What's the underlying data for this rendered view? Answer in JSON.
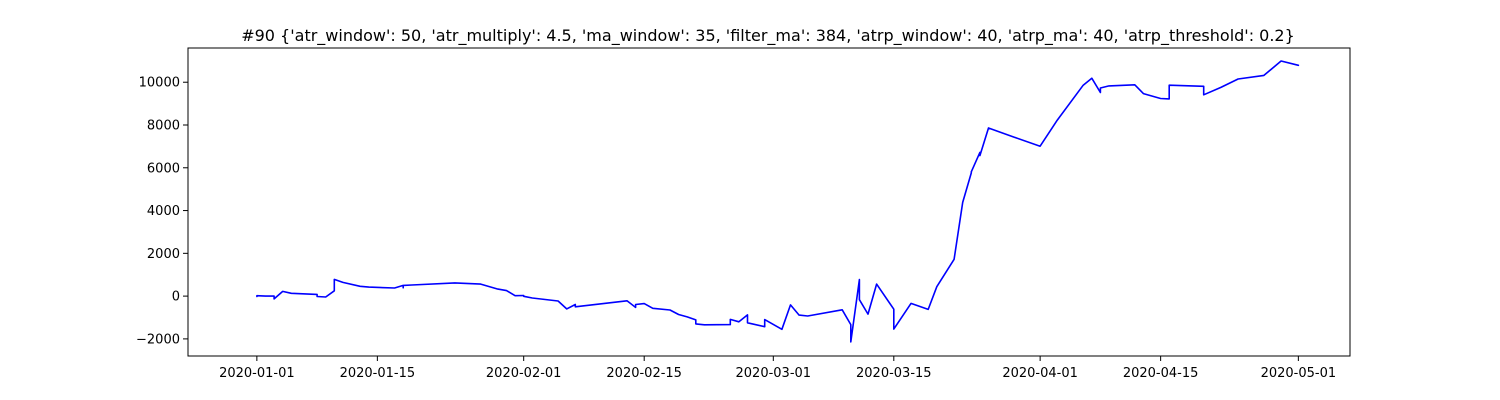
{
  "chart_data": {
    "type": "line",
    "title": "#90 {'atr_window': 50, 'atr_multiply': 4.5, 'ma_window': 35, 'filter_ma': 384, 'atrp_window': 40, 'atrp_ma': 40, 'atrp_threshold': 0.2}",
    "xlabel": "",
    "ylabel": "",
    "xlim": [
      "2019-12-24",
      "2020-05-07"
    ],
    "ylim": [
      -2800,
      11600
    ],
    "grid": false,
    "colors": {
      "line": "#0000ff",
      "axes": "#000000",
      "background": "#ffffff"
    },
    "x_ticks": [
      "2020-01-01",
      "2020-01-15",
      "2020-02-01",
      "2020-02-15",
      "2020-03-01",
      "2020-03-15",
      "2020-04-01",
      "2020-04-15",
      "2020-05-01"
    ],
    "y_ticks": [
      -2000,
      0,
      2000,
      4000,
      6000,
      8000,
      10000
    ],
    "y_tick_labels": [
      "−2000",
      "0",
      "2000",
      "4000",
      "6000",
      "8000",
      "10000"
    ],
    "series": [
      {
        "x": [
          "2020-01-01",
          "2020-01-01",
          "2020-01-02",
          "2020-01-03",
          "2020-01-03",
          "2020-01-04",
          "2020-01-05",
          "2020-01-08",
          "2020-01-08",
          "2020-01-09",
          "2020-01-10",
          "2020-01-10",
          "2020-01-11",
          "2020-01-13",
          "2020-01-14",
          "2020-01-17",
          "2020-01-18",
          "2020-01-18",
          "2020-01-18",
          "2020-01-19",
          "2020-01-24",
          "2020-01-26",
          "2020-01-27",
          "2020-01-29",
          "2020-01-30",
          "2020-01-31",
          "2020-02-01",
          "2020-02-01",
          "2020-02-02",
          "2020-02-05",
          "2020-02-06",
          "2020-02-07",
          "2020-02-07",
          "2020-02-13",
          "2020-02-14",
          "2020-02-14",
          "2020-02-15",
          "2020-02-16",
          "2020-02-18",
          "2020-02-19",
          "2020-02-20",
          "2020-02-21",
          "2020-02-21",
          "2020-02-22",
          "2020-02-25",
          "2020-02-25",
          "2020-02-26",
          "2020-02-27",
          "2020-02-27",
          "2020-02-29",
          "2020-02-29",
          "2020-03-02",
          "2020-03-03",
          "2020-03-04",
          "2020-03-05",
          "2020-03-09",
          "2020-03-10",
          "2020-03-10",
          "2020-03-11",
          "2020-03-11",
          "2020-03-12",
          "2020-03-13",
          "2020-03-15",
          "2020-03-15",
          "2020-03-15",
          "2020-03-17",
          "2020-03-19",
          "2020-03-20",
          "2020-03-22",
          "2020-03-23",
          "2020-03-24",
          "2020-03-24",
          "2020-03-25",
          "2020-03-25",
          "2020-03-26",
          "2020-03-29",
          "2020-04-01",
          "2020-04-03",
          "2020-04-06",
          "2020-04-07",
          "2020-04-08",
          "2020-04-08",
          "2020-04-09",
          "2020-04-12",
          "2020-04-13",
          "2020-04-15",
          "2020-04-16",
          "2020-04-16",
          "2020-04-20",
          "2020-04-20",
          "2020-04-22",
          "2020-04-24",
          "2020-04-27",
          "2020-04-29",
          "2020-05-01"
        ],
        "y": [
          -20,
          20,
          0,
          0,
          -130,
          220,
          130,
          80,
          -20,
          -40,
          250,
          780,
          640,
          460,
          420,
          380,
          500,
          390,
          500,
          520,
          620,
          580,
          560,
          330,
          260,
          20,
          30,
          -10,
          -90,
          -230,
          -600,
          -390,
          -500,
          -220,
          -530,
          -390,
          -350,
          -570,
          -650,
          -860,
          -970,
          -1110,
          -1300,
          -1340,
          -1330,
          -1090,
          -1200,
          -880,
          -1250,
          -1430,
          -1100,
          -1550,
          -410,
          -890,
          -930,
          -640,
          -1330,
          -2140,
          770,
          -170,
          -840,
          560,
          -610,
          -1270,
          -1540,
          -340,
          -620,
          440,
          1720,
          4380,
          5760,
          5810,
          6720,
          6570,
          7860,
          7430,
          7010,
          8230,
          9860,
          10190,
          9520,
          9730,
          9830,
          9880,
          9470,
          9240,
          9220,
          9860,
          9810,
          9410,
          9760,
          10150,
          10320,
          10990,
          10790
        ]
      }
    ]
  }
}
